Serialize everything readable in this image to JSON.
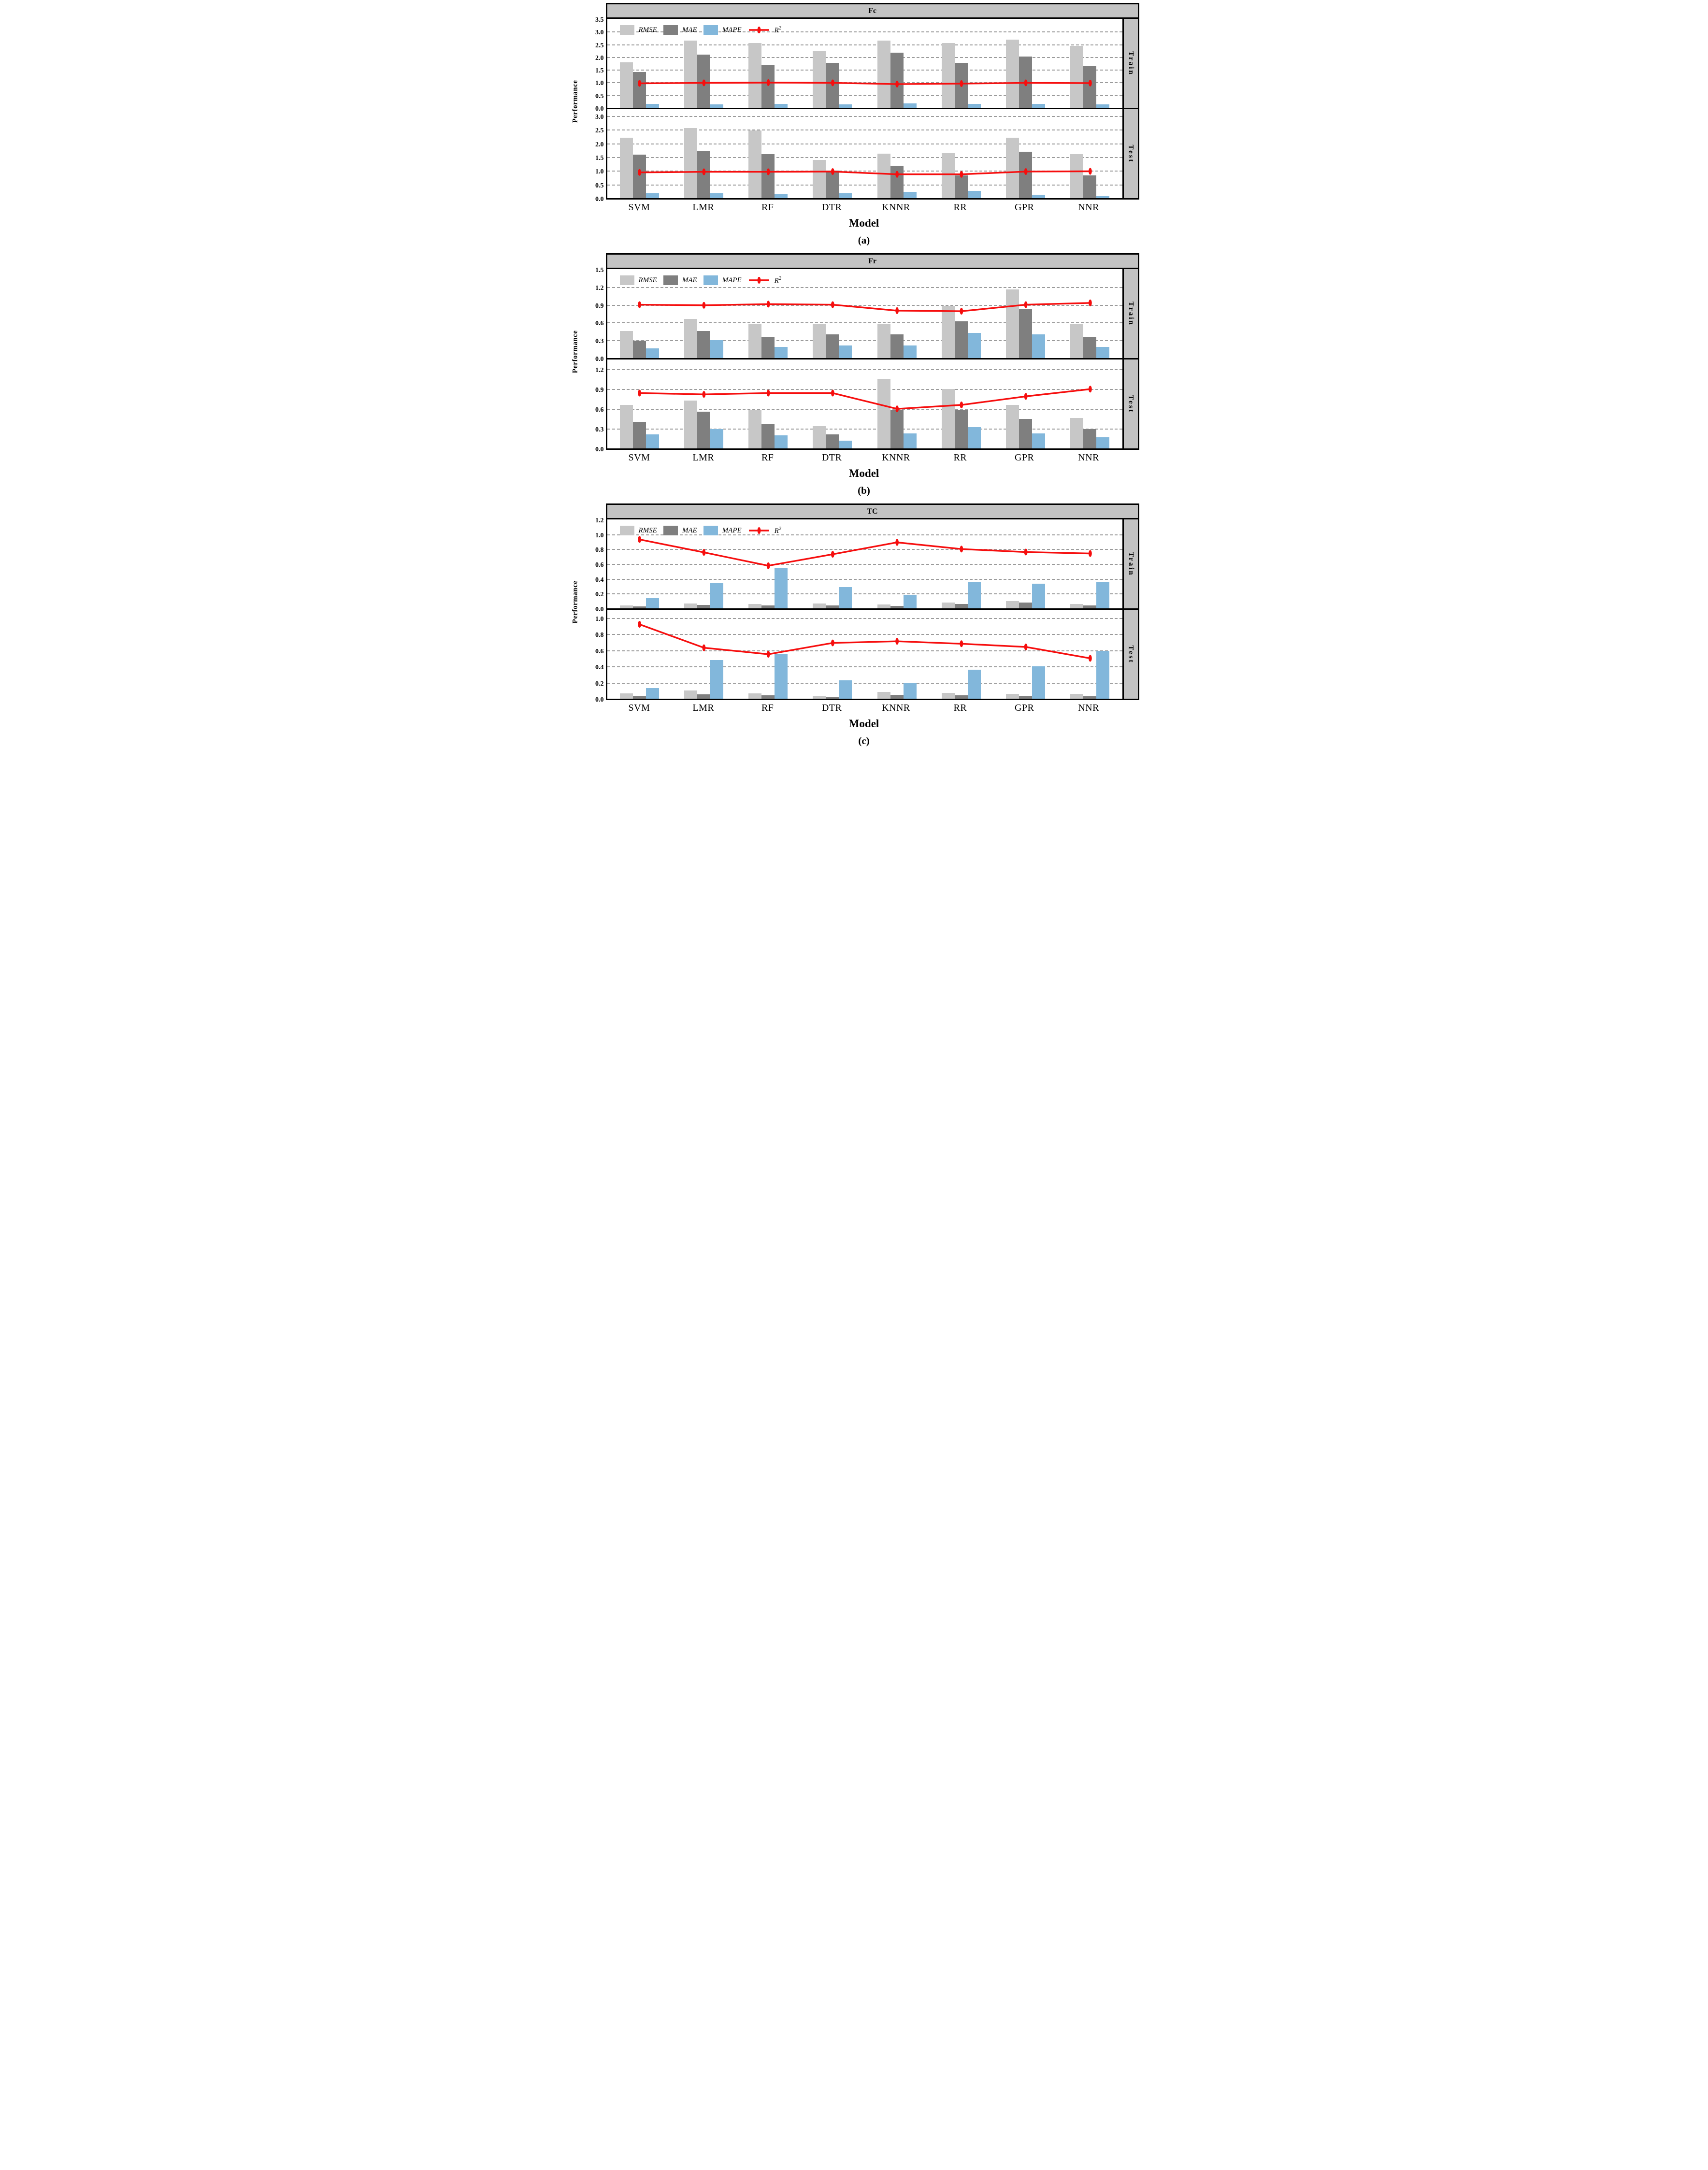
{
  "x_axis_label": "Model",
  "y_axis_label": "Performance",
  "row_labels": [
    "Train",
    "Test"
  ],
  "models": [
    "SVM",
    "LMR",
    "RF",
    "DTR",
    "KNNR",
    "RR",
    "GPR",
    "NNR"
  ],
  "legend": {
    "rmse": "RMSE",
    "mae": "MAE",
    "mape": "MAPE",
    "r2_base": "R",
    "r2_sup": "2"
  },
  "colors": {
    "rmse": "#c7c7c7",
    "mae": "#7f7f7f",
    "mape": "#82b7db",
    "r2": "#f60e0e",
    "header_bg": "#c3c3c3",
    "grid": "#9b9b9b",
    "border": "#000000"
  },
  "chart_data": [
    {
      "type": "grouped-bar+line",
      "title": "Fc",
      "caption": "(a)",
      "categories": [
        "SVM",
        "LMR",
        "RF",
        "DTR",
        "KNNR",
        "RR",
        "GPR",
        "NNR"
      ],
      "train": {
        "ymax": 3.5,
        "ticks": [
          0.0,
          0.5,
          1.0,
          1.5,
          2.0,
          2.5,
          3.0,
          3.5
        ],
        "rmse": [
          1.78,
          2.64,
          2.55,
          2.23,
          2.65,
          2.55,
          2.68,
          2.44
        ],
        "mae": [
          1.41,
          2.09,
          1.69,
          1.77,
          2.17,
          1.76,
          2.02,
          1.63
        ],
        "mape": [
          0.16,
          0.13,
          0.15,
          0.14,
          0.17,
          0.16,
          0.16,
          0.13
        ],
        "r2": [
          0.96,
          0.98,
          0.99,
          0.98,
          0.93,
          0.95,
          0.98,
          0.97
        ]
      },
      "test": {
        "ymax": 3.25,
        "ticks": [
          0.0,
          0.5,
          1.0,
          1.5,
          2.0,
          2.5,
          3.0
        ],
        "rmse": [
          2.21,
          2.57,
          2.48,
          1.4,
          1.63,
          1.65,
          2.21,
          1.6
        ],
        "mae": [
          1.59,
          1.74,
          1.61,
          1.01,
          1.19,
          0.83,
          1.7,
          0.83
        ],
        "mape": [
          0.18,
          0.17,
          0.14,
          0.17,
          0.23,
          0.27,
          0.13,
          0.07
        ],
        "r2": [
          0.94,
          0.96,
          0.96,
          0.97,
          0.87,
          0.87,
          0.97,
          0.98
        ]
      }
    },
    {
      "type": "grouped-bar+line",
      "title": "Fr",
      "caption": "(b)",
      "categories": [
        "SVM",
        "LMR",
        "RF",
        "DTR",
        "KNNR",
        "RR",
        "GPR",
        "NNR"
      ],
      "train": {
        "ymax": 1.5,
        "ticks": [
          0.0,
          0.3,
          0.6,
          0.9,
          1.2,
          1.5
        ],
        "rmse": [
          0.46,
          0.66,
          0.58,
          0.57,
          0.57,
          0.88,
          1.16,
          0.57
        ],
        "mae": [
          0.29,
          0.46,
          0.36,
          0.4,
          0.4,
          0.62,
          0.83,
          0.36
        ],
        "mape": [
          0.16,
          0.3,
          0.19,
          0.21,
          0.21,
          0.42,
          0.4,
          0.19
        ],
        "r2": [
          0.9,
          0.89,
          0.91,
          0.9,
          0.8,
          0.79,
          0.9,
          0.93
        ]
      },
      "test": {
        "ymax": 1.35,
        "ticks": [
          0.0,
          0.3,
          0.6,
          0.9,
          1.2
        ],
        "rmse": [
          0.66,
          0.73,
          0.58,
          0.34,
          1.06,
          0.9,
          0.66,
          0.46
        ],
        "mae": [
          0.4,
          0.56,
          0.37,
          0.21,
          0.59,
          0.58,
          0.45,
          0.29
        ],
        "mape": [
          0.21,
          0.29,
          0.2,
          0.12,
          0.23,
          0.32,
          0.23,
          0.17
        ],
        "r2": [
          0.84,
          0.82,
          0.84,
          0.84,
          0.6,
          0.66,
          0.79,
          0.9
        ]
      }
    },
    {
      "type": "grouped-bar+line",
      "title": "TC",
      "caption": "(c)",
      "categories": [
        "SVM",
        "LMR",
        "RF",
        "DTR",
        "KNNR",
        "RR",
        "GPR",
        "NNR"
      ],
      "train": {
        "ymax": 1.2,
        "ticks": [
          0.0,
          0.2,
          0.4,
          0.6,
          0.8,
          1.0,
          1.2
        ],
        "rmse": [
          0.04,
          0.065,
          0.06,
          0.063,
          0.05,
          0.08,
          0.1,
          0.06
        ],
        "mae": [
          0.024,
          0.047,
          0.039,
          0.042,
          0.035,
          0.056,
          0.08,
          0.039
        ],
        "mape": [
          0.135,
          0.34,
          0.55,
          0.29,
          0.185,
          0.36,
          0.33,
          0.36
        ],
        "r2": [
          0.93,
          0.755,
          0.575,
          0.73,
          0.89,
          0.8,
          0.76,
          0.74
        ]
      },
      "test": {
        "ymax": 1.1,
        "ticks": [
          0.0,
          0.2,
          0.4,
          0.6,
          0.8,
          1.0
        ],
        "rmse": [
          0.065,
          0.1,
          0.065,
          0.038,
          0.085,
          0.07,
          0.06,
          0.06
        ],
        "mae": [
          0.034,
          0.053,
          0.041,
          0.024,
          0.049,
          0.043,
          0.038,
          0.03
        ],
        "mape": [
          0.13,
          0.48,
          0.55,
          0.23,
          0.2,
          0.36,
          0.4,
          0.59
        ],
        "r2": [
          0.92,
          0.63,
          0.55,
          0.69,
          0.71,
          0.68,
          0.64,
          0.5
        ]
      }
    }
  ]
}
